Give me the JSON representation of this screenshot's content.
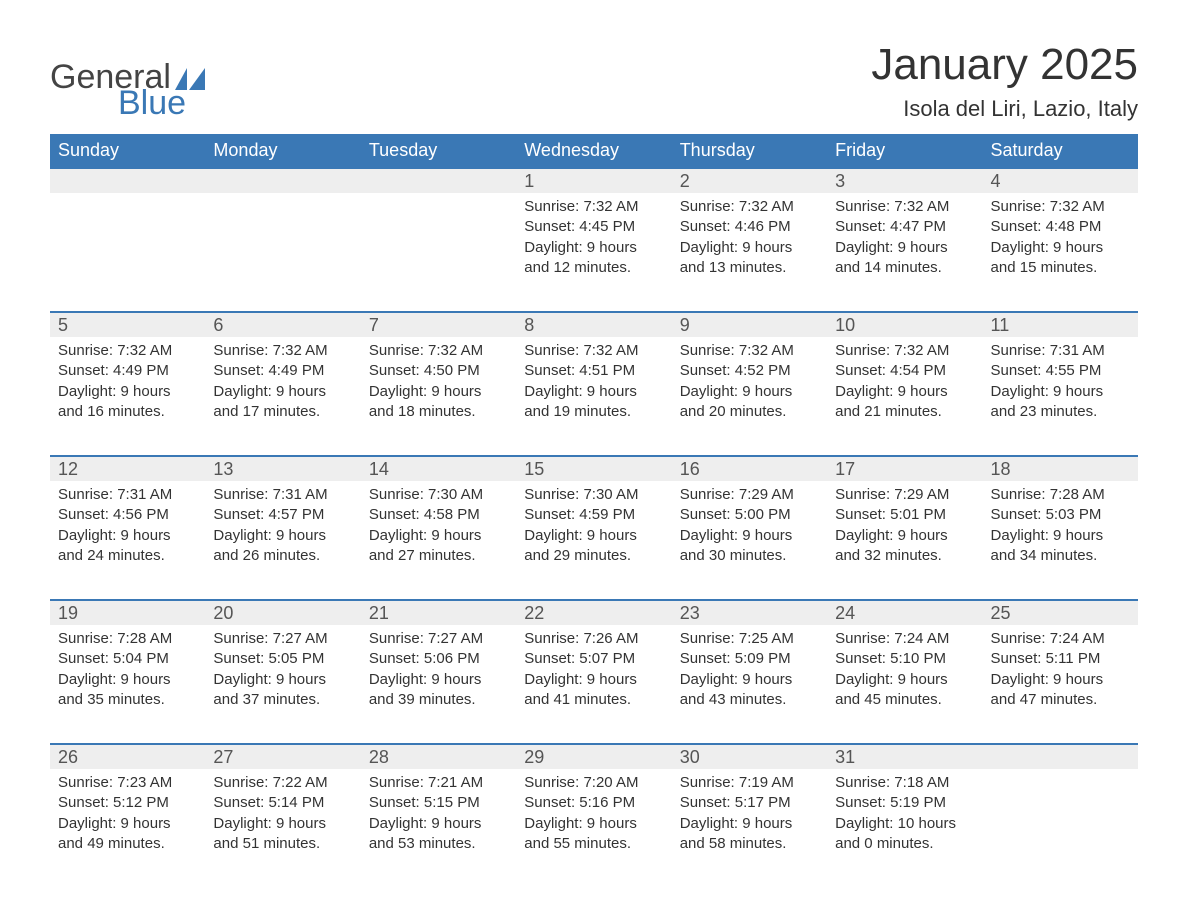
{
  "logo": {
    "word1": "General",
    "word2": "Blue",
    "shape_color": "#3a78b5"
  },
  "title": "January 2025",
  "subtitle": "Isola del Liri, Lazio, Italy",
  "colors": {
    "header_bg": "#3a78b5",
    "header_text": "#ffffff",
    "daynum_bg": "#eeeeee",
    "row_border": "#3a78b5",
    "body_text": "#333333"
  },
  "fonts": {
    "title_size_pt": 33,
    "subtitle_size_pt": 17,
    "dayhead_size_pt": 14,
    "daynum_size_pt": 14,
    "body_size_pt": 11
  },
  "day_headers": [
    "Sunday",
    "Monday",
    "Tuesday",
    "Wednesday",
    "Thursday",
    "Friday",
    "Saturday"
  ],
  "weeks": [
    [
      null,
      null,
      null,
      {
        "n": "1",
        "sunrise": "Sunrise: 7:32 AM",
        "sunset": "Sunset: 4:45 PM",
        "dl1": "Daylight: 9 hours",
        "dl2": "and 12 minutes."
      },
      {
        "n": "2",
        "sunrise": "Sunrise: 7:32 AM",
        "sunset": "Sunset: 4:46 PM",
        "dl1": "Daylight: 9 hours",
        "dl2": "and 13 minutes."
      },
      {
        "n": "3",
        "sunrise": "Sunrise: 7:32 AM",
        "sunset": "Sunset: 4:47 PM",
        "dl1": "Daylight: 9 hours",
        "dl2": "and 14 minutes."
      },
      {
        "n": "4",
        "sunrise": "Sunrise: 7:32 AM",
        "sunset": "Sunset: 4:48 PM",
        "dl1": "Daylight: 9 hours",
        "dl2": "and 15 minutes."
      }
    ],
    [
      {
        "n": "5",
        "sunrise": "Sunrise: 7:32 AM",
        "sunset": "Sunset: 4:49 PM",
        "dl1": "Daylight: 9 hours",
        "dl2": "and 16 minutes."
      },
      {
        "n": "6",
        "sunrise": "Sunrise: 7:32 AM",
        "sunset": "Sunset: 4:49 PM",
        "dl1": "Daylight: 9 hours",
        "dl2": "and 17 minutes."
      },
      {
        "n": "7",
        "sunrise": "Sunrise: 7:32 AM",
        "sunset": "Sunset: 4:50 PM",
        "dl1": "Daylight: 9 hours",
        "dl2": "and 18 minutes."
      },
      {
        "n": "8",
        "sunrise": "Sunrise: 7:32 AM",
        "sunset": "Sunset: 4:51 PM",
        "dl1": "Daylight: 9 hours",
        "dl2": "and 19 minutes."
      },
      {
        "n": "9",
        "sunrise": "Sunrise: 7:32 AM",
        "sunset": "Sunset: 4:52 PM",
        "dl1": "Daylight: 9 hours",
        "dl2": "and 20 minutes."
      },
      {
        "n": "10",
        "sunrise": "Sunrise: 7:32 AM",
        "sunset": "Sunset: 4:54 PM",
        "dl1": "Daylight: 9 hours",
        "dl2": "and 21 minutes."
      },
      {
        "n": "11",
        "sunrise": "Sunrise: 7:31 AM",
        "sunset": "Sunset: 4:55 PM",
        "dl1": "Daylight: 9 hours",
        "dl2": "and 23 minutes."
      }
    ],
    [
      {
        "n": "12",
        "sunrise": "Sunrise: 7:31 AM",
        "sunset": "Sunset: 4:56 PM",
        "dl1": "Daylight: 9 hours",
        "dl2": "and 24 minutes."
      },
      {
        "n": "13",
        "sunrise": "Sunrise: 7:31 AM",
        "sunset": "Sunset: 4:57 PM",
        "dl1": "Daylight: 9 hours",
        "dl2": "and 26 minutes."
      },
      {
        "n": "14",
        "sunrise": "Sunrise: 7:30 AM",
        "sunset": "Sunset: 4:58 PM",
        "dl1": "Daylight: 9 hours",
        "dl2": "and 27 minutes."
      },
      {
        "n": "15",
        "sunrise": "Sunrise: 7:30 AM",
        "sunset": "Sunset: 4:59 PM",
        "dl1": "Daylight: 9 hours",
        "dl2": "and 29 minutes."
      },
      {
        "n": "16",
        "sunrise": "Sunrise: 7:29 AM",
        "sunset": "Sunset: 5:00 PM",
        "dl1": "Daylight: 9 hours",
        "dl2": "and 30 minutes."
      },
      {
        "n": "17",
        "sunrise": "Sunrise: 7:29 AM",
        "sunset": "Sunset: 5:01 PM",
        "dl1": "Daylight: 9 hours",
        "dl2": "and 32 minutes."
      },
      {
        "n": "18",
        "sunrise": "Sunrise: 7:28 AM",
        "sunset": "Sunset: 5:03 PM",
        "dl1": "Daylight: 9 hours",
        "dl2": "and 34 minutes."
      }
    ],
    [
      {
        "n": "19",
        "sunrise": "Sunrise: 7:28 AM",
        "sunset": "Sunset: 5:04 PM",
        "dl1": "Daylight: 9 hours",
        "dl2": "and 35 minutes."
      },
      {
        "n": "20",
        "sunrise": "Sunrise: 7:27 AM",
        "sunset": "Sunset: 5:05 PM",
        "dl1": "Daylight: 9 hours",
        "dl2": "and 37 minutes."
      },
      {
        "n": "21",
        "sunrise": "Sunrise: 7:27 AM",
        "sunset": "Sunset: 5:06 PM",
        "dl1": "Daylight: 9 hours",
        "dl2": "and 39 minutes."
      },
      {
        "n": "22",
        "sunrise": "Sunrise: 7:26 AM",
        "sunset": "Sunset: 5:07 PM",
        "dl1": "Daylight: 9 hours",
        "dl2": "and 41 minutes."
      },
      {
        "n": "23",
        "sunrise": "Sunrise: 7:25 AM",
        "sunset": "Sunset: 5:09 PM",
        "dl1": "Daylight: 9 hours",
        "dl2": "and 43 minutes."
      },
      {
        "n": "24",
        "sunrise": "Sunrise: 7:24 AM",
        "sunset": "Sunset: 5:10 PM",
        "dl1": "Daylight: 9 hours",
        "dl2": "and 45 minutes."
      },
      {
        "n": "25",
        "sunrise": "Sunrise: 7:24 AM",
        "sunset": "Sunset: 5:11 PM",
        "dl1": "Daylight: 9 hours",
        "dl2": "and 47 minutes."
      }
    ],
    [
      {
        "n": "26",
        "sunrise": "Sunrise: 7:23 AM",
        "sunset": "Sunset: 5:12 PM",
        "dl1": "Daylight: 9 hours",
        "dl2": "and 49 minutes."
      },
      {
        "n": "27",
        "sunrise": "Sunrise: 7:22 AM",
        "sunset": "Sunset: 5:14 PM",
        "dl1": "Daylight: 9 hours",
        "dl2": "and 51 minutes."
      },
      {
        "n": "28",
        "sunrise": "Sunrise: 7:21 AM",
        "sunset": "Sunset: 5:15 PM",
        "dl1": "Daylight: 9 hours",
        "dl2": "and 53 minutes."
      },
      {
        "n": "29",
        "sunrise": "Sunrise: 7:20 AM",
        "sunset": "Sunset: 5:16 PM",
        "dl1": "Daylight: 9 hours",
        "dl2": "and 55 minutes."
      },
      {
        "n": "30",
        "sunrise": "Sunrise: 7:19 AM",
        "sunset": "Sunset: 5:17 PM",
        "dl1": "Daylight: 9 hours",
        "dl2": "and 58 minutes."
      },
      {
        "n": "31",
        "sunrise": "Sunrise: 7:18 AM",
        "sunset": "Sunset: 5:19 PM",
        "dl1": "Daylight: 10 hours",
        "dl2": "and 0 minutes."
      },
      null
    ]
  ]
}
